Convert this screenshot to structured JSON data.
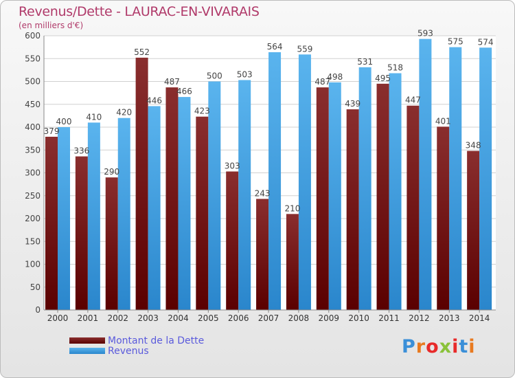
{
  "title": "Revenus/Dette - LAURAC-EN-VIVARAIS",
  "subtitle": "(en milliers d'€)",
  "legend": [
    {
      "label": "Montant de la Dette",
      "color": "#7a1a1a"
    },
    {
      "label": "Revenus",
      "color": "#4aa8e8"
    }
  ],
  "logo": {
    "text": "Proxiti",
    "letter_colors": [
      "#3a8fd8",
      "#e87a20",
      "#e82a2a",
      "#8ac23a",
      "#e82a2a",
      "#3a8fd8",
      "#e87a20"
    ]
  },
  "chart_data": {
    "type": "bar",
    "categories": [
      "2000",
      "2001",
      "2002",
      "2003",
      "2004",
      "2005",
      "2006",
      "2007",
      "2008",
      "2009",
      "2010",
      "2011",
      "2012",
      "2013",
      "2014"
    ],
    "series": [
      {
        "name": "Montant de la Dette",
        "values": [
          379,
          336,
          290,
          552,
          487,
          423,
          303,
          243,
          210,
          487,
          439,
          495,
          447,
          401,
          348
        ]
      },
      {
        "name": "Revenus",
        "values": [
          400,
          410,
          420,
          446,
          466,
          500,
          503,
          564,
          559,
          498,
          531,
          518,
          593,
          575,
          574
        ]
      }
    ],
    "ylim": [
      0,
      600
    ],
    "yticks": [
      0,
      50,
      100,
      150,
      200,
      250,
      300,
      350,
      400,
      450,
      500,
      550,
      600
    ],
    "grid": true,
    "legend_position": "bottom-left"
  }
}
